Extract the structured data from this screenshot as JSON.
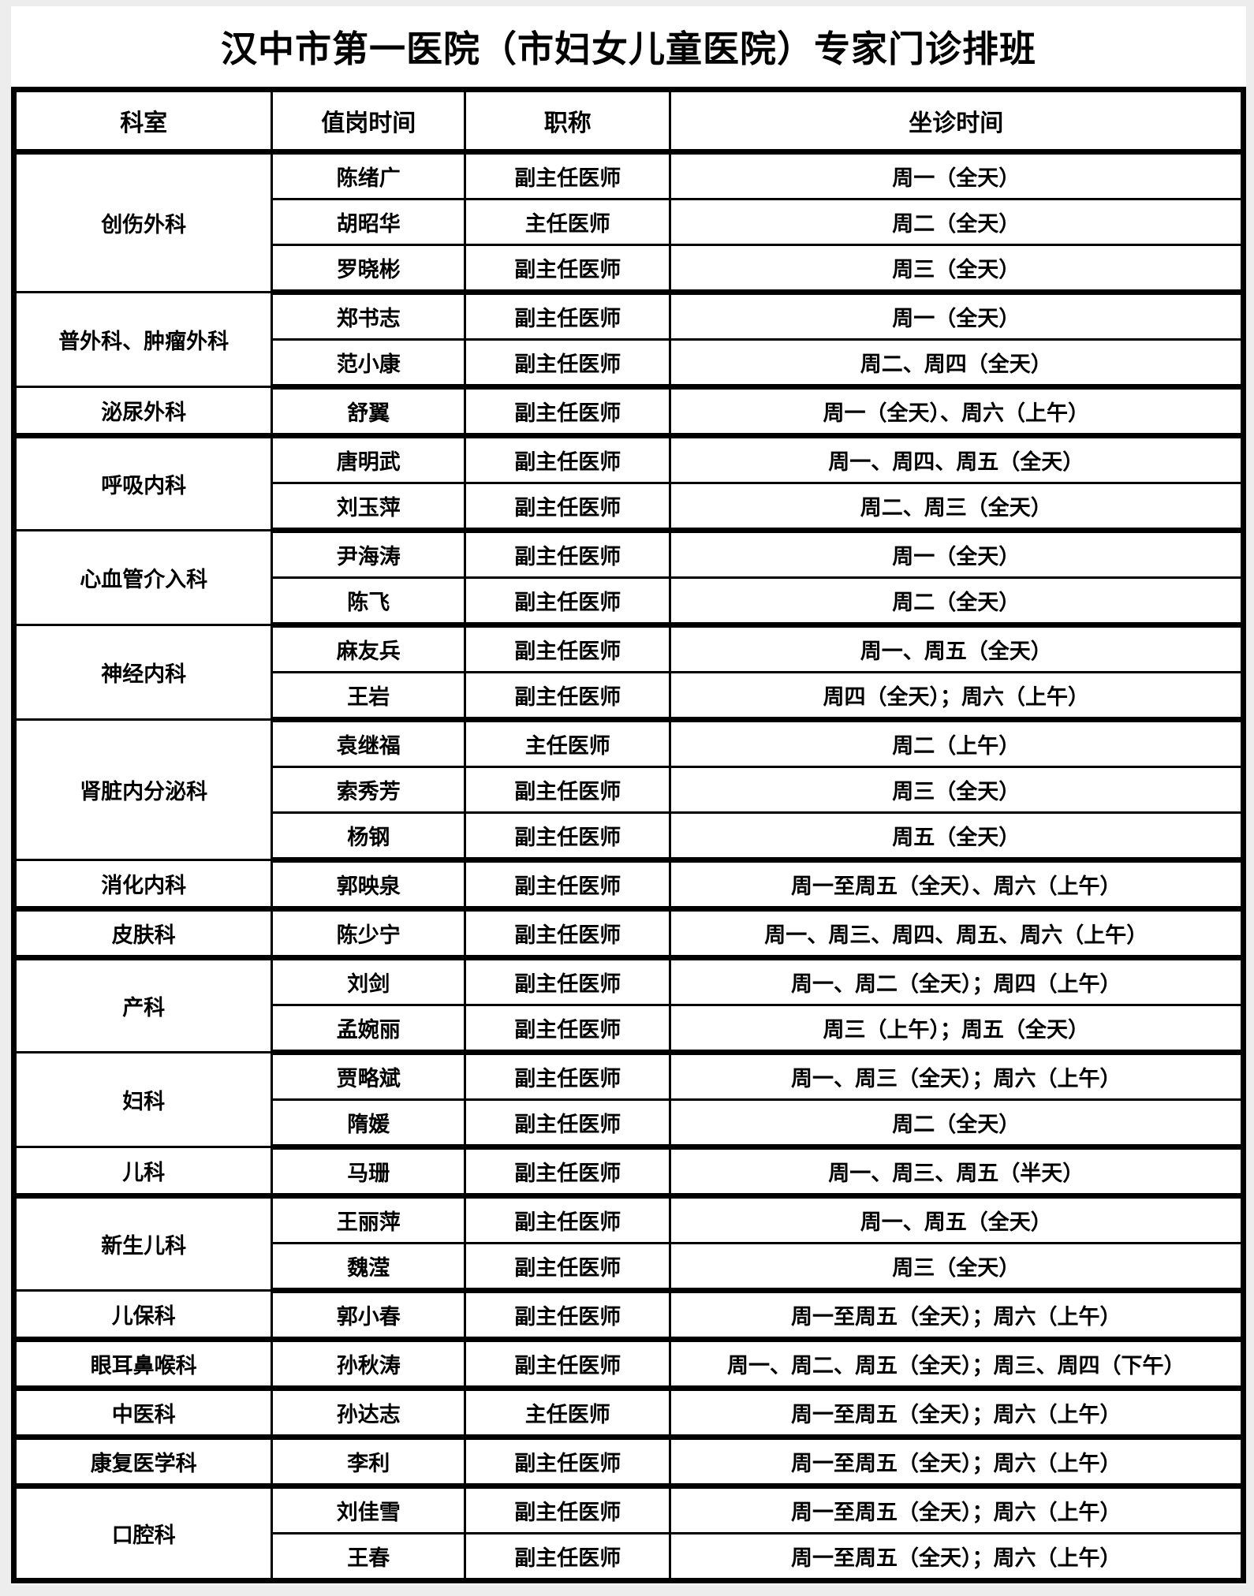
{
  "page": {
    "title": "汉中市第一医院（市妇女儿童医院）专家门诊排班"
  },
  "table": {
    "columns": [
      "科室",
      "值岗时间",
      "职称",
      "坐诊时间"
    ],
    "sections": [
      {
        "department": "创伤外科",
        "doctors": [
          {
            "name": "陈绪广",
            "title": "副主任医师",
            "schedule": "周一（全天）"
          },
          {
            "name": "胡昭华",
            "title": "主任医师",
            "schedule": "周二（全天）"
          },
          {
            "name": "罗晓彬",
            "title": "副主任医师",
            "schedule": "周三（全天）"
          }
        ]
      },
      {
        "department": "普外科、肿瘤外科",
        "doctors": [
          {
            "name": "郑书志",
            "title": "副主任医师",
            "schedule": "周一（全天）"
          },
          {
            "name": "范小康",
            "title": "副主任医师",
            "schedule": "周二、周四（全天）"
          }
        ]
      },
      {
        "department": "泌尿外科",
        "doctors": [
          {
            "name": "舒翼",
            "title": "副主任医师",
            "schedule": "周一（全天）、周六（上午）"
          }
        ]
      },
      {
        "department": "呼吸内科",
        "doctors": [
          {
            "name": "唐明武",
            "title": "副主任医师",
            "schedule": "周一、周四、周五（全天）"
          },
          {
            "name": "刘玉萍",
            "title": "副主任医师",
            "schedule": "周二、周三（全天）"
          }
        ]
      },
      {
        "department": "心血管介入科",
        "doctors": [
          {
            "name": "尹海涛",
            "title": "副主任医师",
            "schedule": "周一（全天）"
          },
          {
            "name": "陈飞",
            "title": "副主任医师",
            "schedule": "周二（全天）"
          }
        ]
      },
      {
        "department": "神经内科",
        "doctors": [
          {
            "name": "麻友兵",
            "title": "副主任医师",
            "schedule": "周一、周五（全天）"
          },
          {
            "name": "王岩",
            "title": "副主任医师",
            "schedule": "周四（全天）；周六（上午）"
          }
        ]
      },
      {
        "department": "肾脏内分泌科",
        "doctors": [
          {
            "name": "袁继福",
            "title": "主任医师",
            "schedule": "周二（上午）"
          },
          {
            "name": "索秀芳",
            "title": "副主任医师",
            "schedule": "周三（全天）"
          },
          {
            "name": "杨钢",
            "title": "副主任医师",
            "schedule": "周五（全天）"
          }
        ]
      },
      {
        "department": "消化内科",
        "doctors": [
          {
            "name": "郭映泉",
            "title": "副主任医师",
            "schedule": "周一至周五（全天）、周六（上午）"
          }
        ]
      },
      {
        "department": "皮肤科",
        "doctors": [
          {
            "name": "陈少宁",
            "title": "副主任医师",
            "schedule": "周一、周三、周四、周五、周六（上午）"
          }
        ]
      },
      {
        "department": "产科",
        "doctors": [
          {
            "name": "刘剑",
            "title": "副主任医师",
            "schedule": "周一、周二（全天）；周四（上午）"
          },
          {
            "name": "孟婉丽",
            "title": "副主任医师",
            "schedule": "周三（上午）；周五（全天）"
          }
        ]
      },
      {
        "department": "妇科",
        "doctors": [
          {
            "name": "贾略斌",
            "title": "副主任医师",
            "schedule": "周一、周三（全天）；周六（上午）"
          },
          {
            "name": "隋媛",
            "title": "副主任医师",
            "schedule": "周二（全天）"
          }
        ]
      },
      {
        "department": "儿科",
        "doctors": [
          {
            "name": "马珊",
            "title": "副主任医师",
            "schedule": "周一、周三、周五（半天）"
          }
        ]
      },
      {
        "department": "新生儿科",
        "doctors": [
          {
            "name": "王丽萍",
            "title": "副主任医师",
            "schedule": "周一、周五（全天）"
          },
          {
            "name": "魏滢",
            "title": "副主任医师",
            "schedule": "周三（全天）"
          }
        ]
      },
      {
        "department": "儿保科",
        "doctors": [
          {
            "name": "郭小春",
            "title": "副主任医师",
            "schedule": "周一至周五（全天）；周六（上午）"
          }
        ]
      },
      {
        "department": "眼耳鼻喉科",
        "doctors": [
          {
            "name": "孙秋涛",
            "title": "副主任医师",
            "schedule": "周一、周二、周五（全天）；周三、周四（下午）"
          }
        ]
      },
      {
        "department": "中医科",
        "doctors": [
          {
            "name": "孙达志",
            "title": "主任医师",
            "schedule": "周一至周五（全天）；周六（上午）"
          }
        ]
      },
      {
        "department": "康复医学科",
        "doctors": [
          {
            "name": "李利",
            "title": "副主任医师",
            "schedule": "周一至周五（全天）；周六（上午）"
          }
        ]
      },
      {
        "department": "口腔科",
        "doctors": [
          {
            "name": "刘佳雪",
            "title": "副主任医师",
            "schedule": "周一至周五（全天）；周六（上午）"
          },
          {
            "name": "王春",
            "title": "副主任医师",
            "schedule": "周一至周五（全天）；周六（上午）"
          }
        ]
      }
    ]
  },
  "colors": {
    "border": "#000000",
    "sheet_background": "#ffffff",
    "page_margin": "#ededed",
    "text": "#000000"
  }
}
